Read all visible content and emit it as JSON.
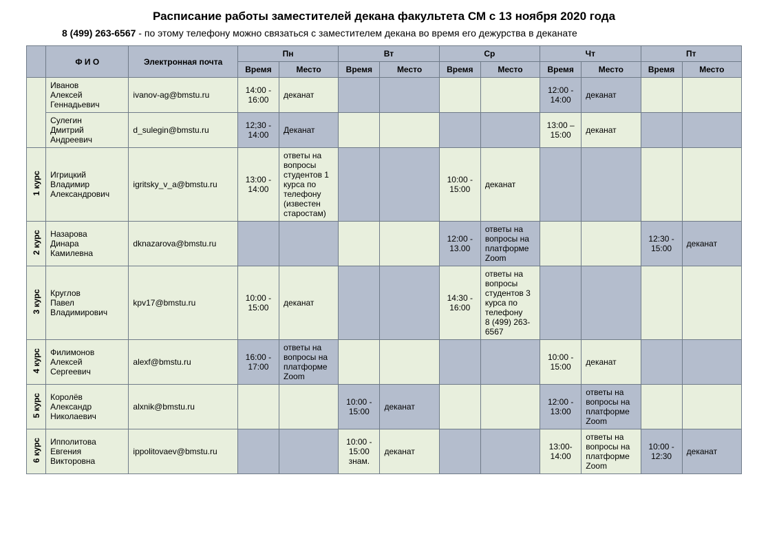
{
  "title": "Расписание работы заместителей декана факультета СМ с 13 ноября 2020 года",
  "phone": "8 (499) 263-6567",
  "subtitle_rest": " - по этому телефону можно связаться с заместителем декана во время его дежурства в деканате",
  "header": {
    "name": "Ф И О",
    "email": "Электронная почта",
    "days": [
      "Пн",
      "Вт",
      "Ср",
      "Чт",
      "Пт"
    ],
    "time": "Время",
    "place": "Место"
  },
  "rows": [
    {
      "course": "",
      "name": "Иванов\nАлексей\nГеннадьевич",
      "email": "ivanov-ag@bmstu.ru",
      "cells": [
        {
          "t": "14:00 - 16:00",
          "p": "деканат"
        },
        {
          "t": "",
          "p": ""
        },
        {
          "t": "",
          "p": ""
        },
        {
          "t": "12:00 - 14:00",
          "p": "деканат"
        },
        {
          "t": "",
          "p": ""
        }
      ],
      "pattern": "A"
    },
    {
      "course": "",
      "name": "Сулегин\nДмитрий\nАндреевич",
      "email": "d_sulegin@bmstu.ru",
      "cells": [
        {
          "t": "12;30 - 14:00",
          "p": "Деканат"
        },
        {
          "t": "",
          "p": ""
        },
        {
          "t": "",
          "p": ""
        },
        {
          "t": "13:00 – 15:00",
          "p": "деканат"
        },
        {
          "t": "",
          "p": ""
        }
      ],
      "pattern": "B"
    },
    {
      "course": "1 курс",
      "name": "Игрицкий\nВладимир\nАлександрович",
      "email": "igritsky_v_a@bmstu.ru",
      "cells": [
        {
          "t": "13:00 - 14:00",
          "p": "ответы на вопросы студентов 1 курса по телефону (известен старостам)"
        },
        {
          "t": "",
          "p": ""
        },
        {
          "t": "10:00 - 15:00",
          "p": "деканат"
        },
        {
          "t": "",
          "p": ""
        },
        {
          "t": "",
          "p": ""
        }
      ],
      "pattern": "A"
    },
    {
      "course": "2 курс",
      "name": "Назарова\nДинара\nКамилевна",
      "email": "dknazarova@bmstu.ru",
      "cells": [
        {
          "t": "",
          "p": ""
        },
        {
          "t": "",
          "p": ""
        },
        {
          "t": "12:00 - 13.00",
          "p": "ответы на вопросы на платформе Zoom"
        },
        {
          "t": "",
          "p": ""
        },
        {
          "t": "12:30 - 15:00",
          "p": "деканат"
        }
      ],
      "pattern": "B"
    },
    {
      "course": "3 курс",
      "name": "Круглов\nПавел\nВладимирович",
      "email": "kpv17@bmstu.ru",
      "cells": [
        {
          "t": "10:00 - 15:00",
          "p": "деканат"
        },
        {
          "t": "",
          "p": ""
        },
        {
          "t": "14:30 - 16:00",
          "p": "ответы на вопросы студентов 3 курса по телефону\n8 (499) 263-6567"
        },
        {
          "t": "",
          "p": ""
        },
        {
          "t": "",
          "p": ""
        }
      ],
      "pattern": "A"
    },
    {
      "course": "4 курс",
      "name": "Филимонов\nАлексей\nСергеевич",
      "email": "alexf@bmstu.ru",
      "cells": [
        {
          "t": "16:00 - 17:00",
          "p": "ответы на вопросы на платформе Zoom"
        },
        {
          "t": "",
          "p": ""
        },
        {
          "t": "",
          "p": ""
        },
        {
          "t": "10:00 - 15:00",
          "p": "деканат"
        },
        {
          "t": "",
          "p": ""
        }
      ],
      "pattern": "B"
    },
    {
      "course": "5 курс",
      "name": "Королёв\nАлександр\nНиколаевич",
      "email": "alxnik@bmstu.ru",
      "cells": [
        {
          "t": "",
          "p": ""
        },
        {
          "t": "10:00 - 15:00",
          "p": "деканат"
        },
        {
          "t": "",
          "p": ""
        },
        {
          "t": "12:00 - 13:00",
          "p": "ответы на вопросы на платформе Zoom"
        },
        {
          "t": "",
          "p": ""
        }
      ],
      "pattern": "A"
    },
    {
      "course": "6 курс",
      "name": "Ипполитова\nЕвгения\nВикторовна",
      "email": "ippolitovaev@bmstu.ru",
      "cells": [
        {
          "t": "",
          "p": ""
        },
        {
          "t": "10:00 - 15:00 знам.",
          "p": "деканат"
        },
        {
          "t": "",
          "p": ""
        },
        {
          "t": "13:00- 14:00",
          "p": "ответы на вопросы на платформе Zoom"
        },
        {
          "t": "10:00 - 12:30",
          "p": "деканат"
        }
      ],
      "pattern": "B"
    }
  ],
  "colors": {
    "header_bg": "#b4bdcd",
    "row_greenish": "#e8efdd",
    "row_blueish": "#b4bdcd",
    "border": "#6e7a88"
  }
}
